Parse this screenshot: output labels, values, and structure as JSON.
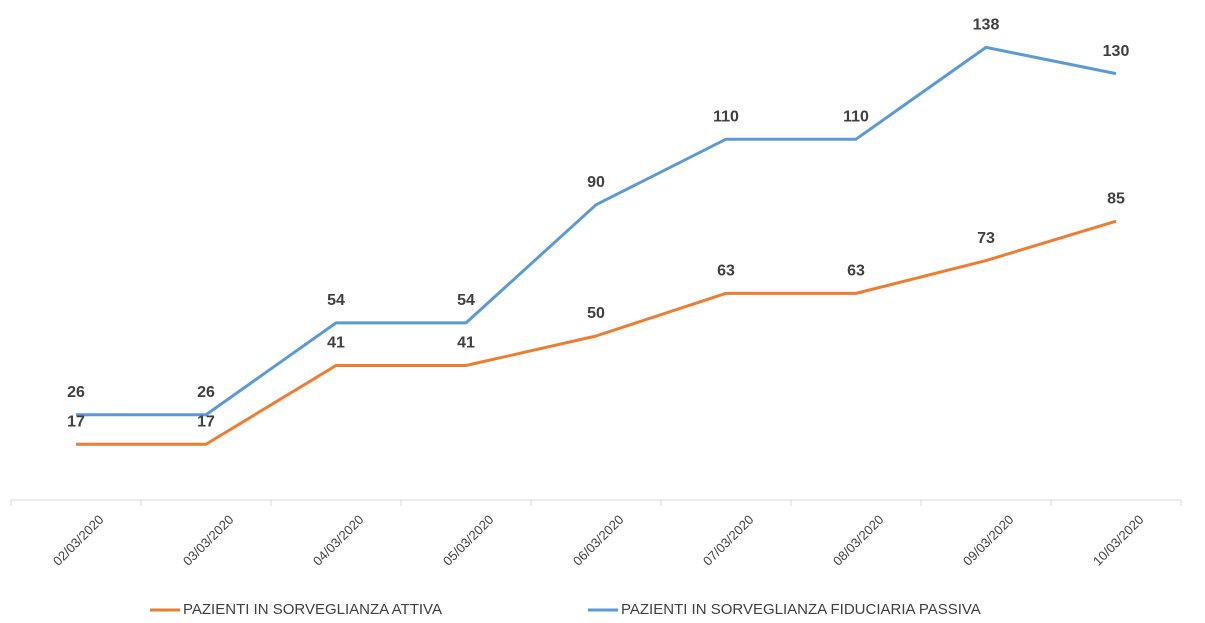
{
  "chart_data": {
    "type": "line",
    "categories": [
      "02/03/2020",
      "03/03/2020",
      "04/03/2020",
      "05/03/2020",
      "06/03/2020",
      "07/03/2020",
      "08/03/2020",
      "09/03/2020",
      "10/03/2020"
    ],
    "series": [
      {
        "name": "PAZIENTI IN SORVEGLIANZA ATTIVA",
        "color": "#ed7d31",
        "values": [
          17,
          17,
          41,
          41,
          50,
          63,
          63,
          73,
          85
        ]
      },
      {
        "name": "PAZIENTI IN SORVEGLIANZA FIDUCIARIA PASSIVA",
        "color": "#5b9bd5",
        "values": [
          26,
          26,
          54,
          54,
          90,
          110,
          110,
          138,
          130
        ]
      }
    ]
  }
}
